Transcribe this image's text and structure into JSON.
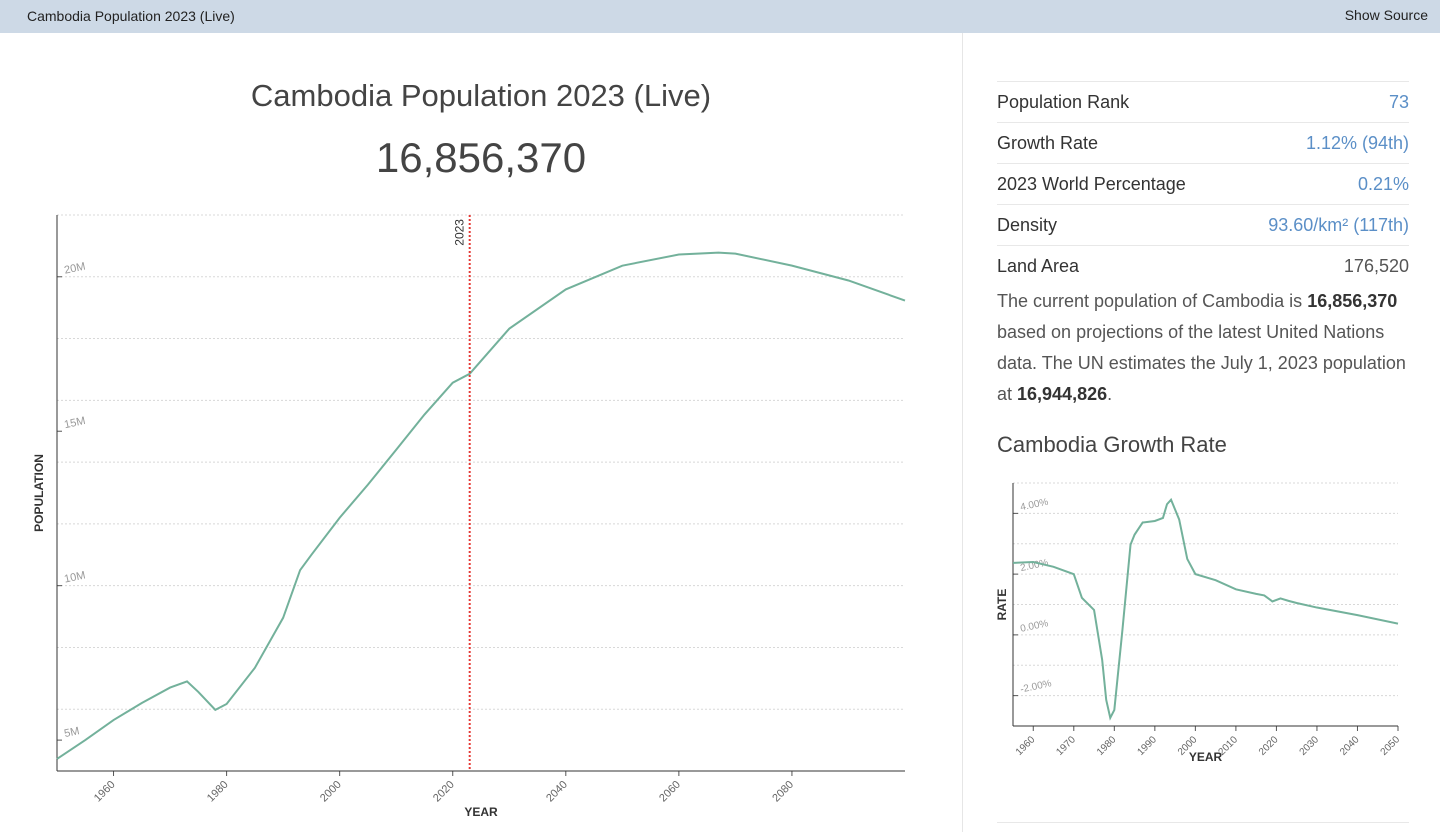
{
  "header": {
    "title": "Cambodia Population 2023 (Live)",
    "action": "Show Source"
  },
  "population": "16,856,370",
  "stats": [
    {
      "label": "Population Rank",
      "value": "73"
    },
    {
      "label": "Growth Rate",
      "value": "1.12% (94th)"
    },
    {
      "label": "2023 World Percentage",
      "value": "0.21%"
    },
    {
      "label": "Density",
      "value": "93.60/km² (117th)"
    },
    {
      "label": "Land Area",
      "value": "176,520"
    }
  ],
  "paragraph": [
    "The current population of Cambodia is ",
    "16,856,370",
    " based on projections of the latest United Nations data. The UN estimates the July 1, 2023 population at ",
    "16,944,826",
    "."
  ],
  "chart_data": [
    {
      "type": "line",
      "title": "Cambodia Population 2023 (Live)",
      "xlabel": "YEAR",
      "ylabel": "POPULATION",
      "x": [
        1950,
        1955,
        1960,
        1965,
        1970,
        1973,
        1975,
        1978,
        1980,
        1985,
        1990,
        1993,
        1995,
        2000,
        2005,
        2010,
        2015,
        2020,
        2023,
        2030,
        2040,
        2050,
        2060,
        2067,
        2070,
        2080,
        2090,
        2100
      ],
      "series": [
        {
          "color": "#73b19b",
          "values": [
            4390000,
            5000000,
            5650000,
            6200000,
            6700000,
            6900000,
            6560000,
            5980000,
            6170000,
            7340000,
            8960000,
            10500000,
            11000000,
            12200000,
            13270000,
            14400000,
            15540000,
            16570000,
            16860000,
            18320000,
            19590000,
            20360000,
            20720000,
            20780000,
            20750000,
            20360000,
            19880000,
            19230000
          ]
        }
      ],
      "xlim": [
        1950,
        2100
      ],
      "xticks": [
        1960,
        1980,
        2000,
        2020,
        2040,
        2060,
        2080
      ],
      "ylim": [
        4000000,
        22000000
      ],
      "yticks": [
        {
          "value": 5000000,
          "label": "5M"
        },
        {
          "value": 10000000,
          "label": "10M"
        },
        {
          "value": 15000000,
          "label": "15M"
        },
        {
          "value": 20000000,
          "label": "20M"
        }
      ],
      "ygrid": [
        6000000,
        8000000,
        10000000,
        12000000,
        14000000,
        16000000,
        18000000,
        20000000,
        22000000
      ],
      "marker": {
        "x": 2023,
        "color": "#e53935"
      }
    },
    {
      "type": "line",
      "title": "Cambodia Growth Rate",
      "xlabel": "YEAR",
      "ylabel": "RATE",
      "x": [
        1955,
        1960,
        1965,
        1970,
        1972,
        1975,
        1977,
        1978,
        1979,
        1980,
        1982,
        1984,
        1985,
        1987,
        1990,
        1992,
        1993,
        1994,
        1996,
        1998,
        2000,
        2005,
        2010,
        2015,
        2017,
        2019,
        2021,
        2023,
        2025,
        2030,
        2040,
        2050
      ],
      "series": [
        {
          "color": "#73b19b",
          "values": [
            2.37,
            2.4,
            2.24,
            2.0,
            1.22,
            0.82,
            -0.82,
            -2.14,
            -2.73,
            -2.47,
            0.16,
            2.97,
            3.3,
            3.7,
            3.75,
            3.85,
            4.3,
            4.45,
            3.8,
            2.5,
            2.0,
            1.8,
            1.5,
            1.35,
            1.3,
            1.1,
            1.2,
            1.12,
            1.05,
            0.9,
            0.65,
            0.37
          ]
        }
      ],
      "xlim": [
        1955,
        2050
      ],
      "xticks": [
        1960,
        1970,
        1980,
        1990,
        2000,
        2010,
        2020,
        2030,
        2040,
        2050
      ],
      "ylim": [
        -3,
        5
      ],
      "yticks": [
        {
          "value": -2,
          "label": "-2.00%"
        },
        {
          "value": 0,
          "label": "0.00%"
        },
        {
          "value": 2,
          "label": "2.00%"
        },
        {
          "value": 4,
          "label": "4.00%"
        }
      ],
      "ygrid": [
        -3,
        -2,
        -1,
        0,
        1,
        2,
        3,
        4,
        5
      ]
    }
  ]
}
